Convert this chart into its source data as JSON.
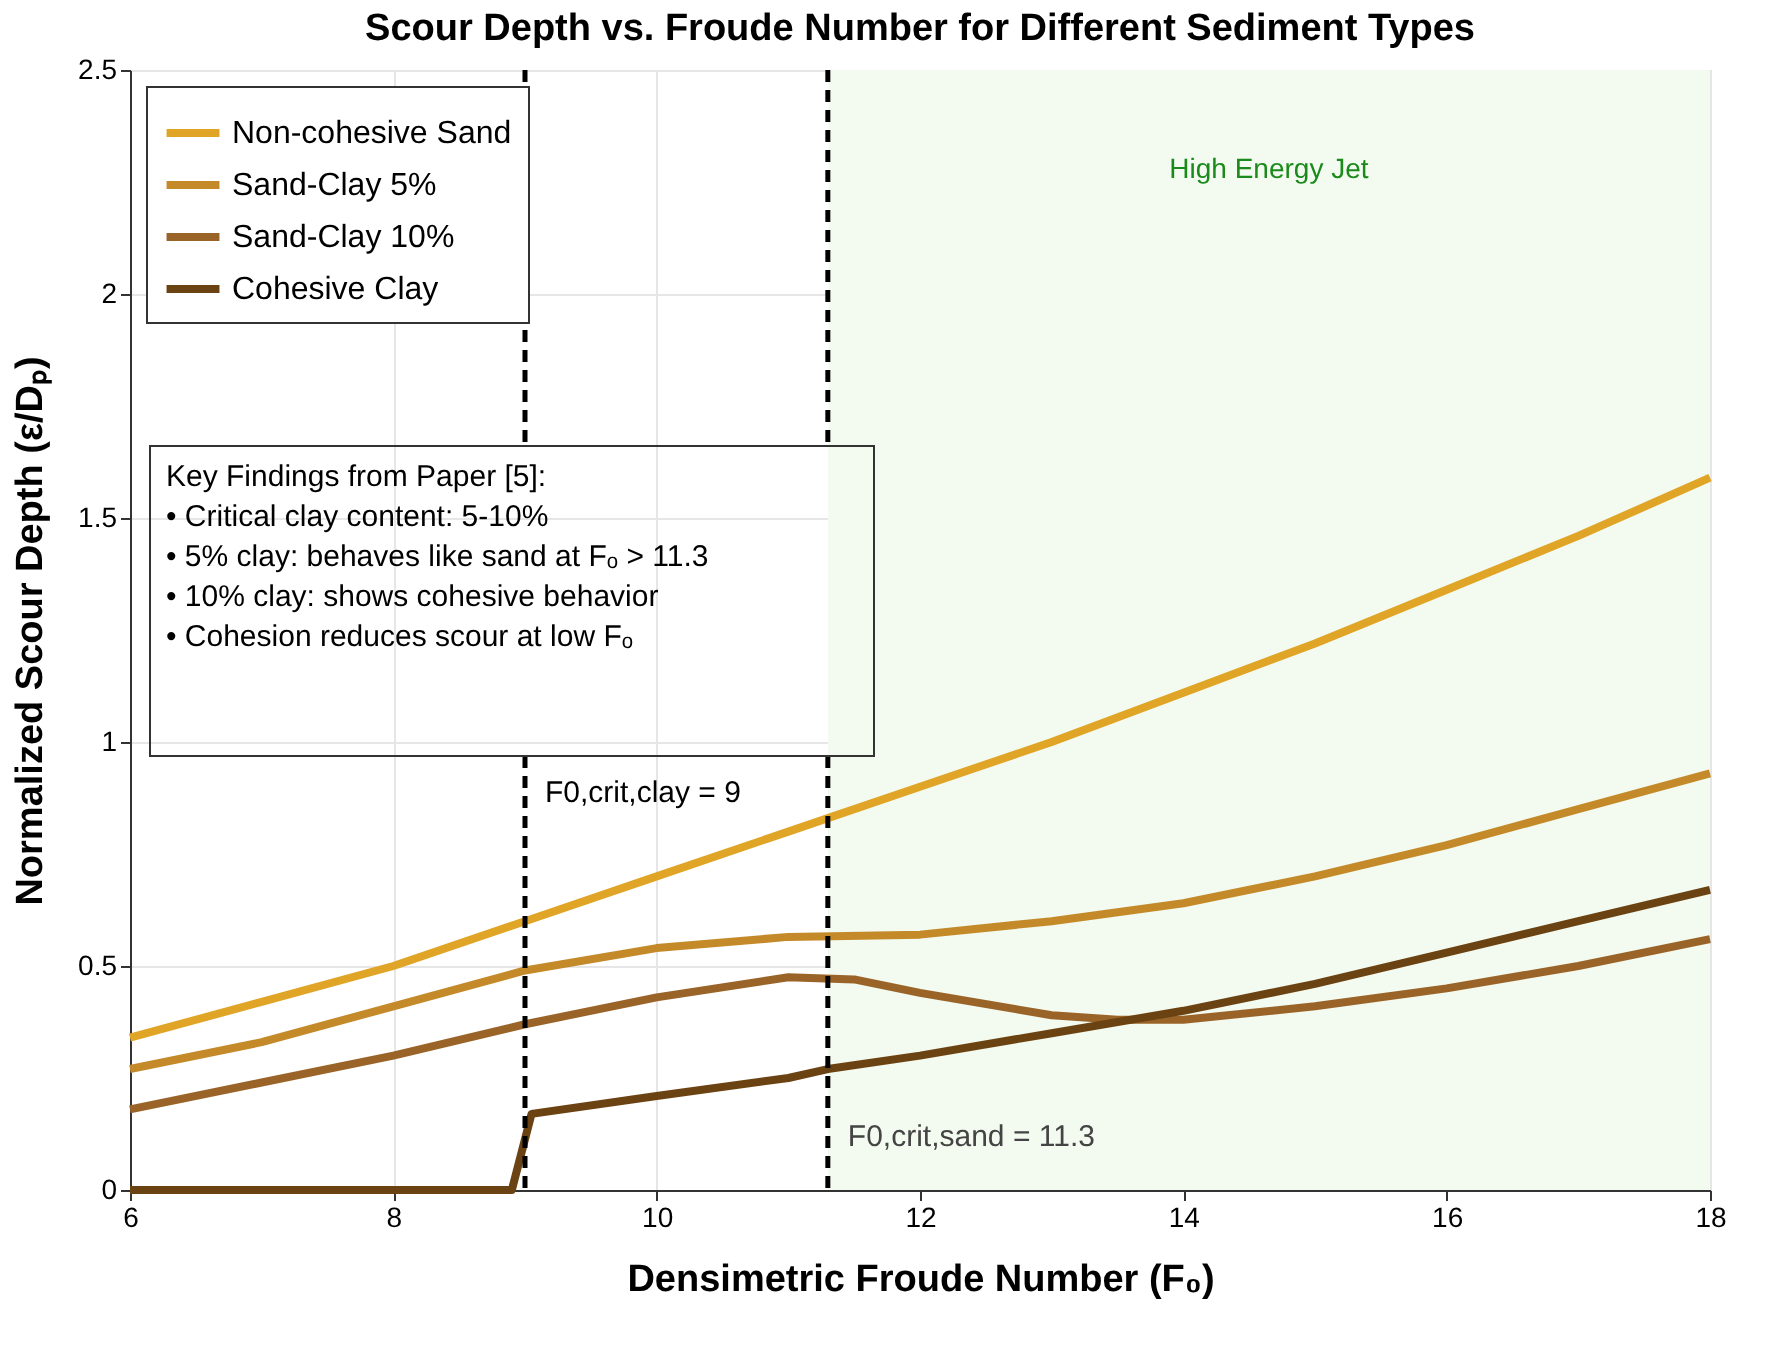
{
  "chart_data": {
    "type": "line",
    "title": "Scour Depth vs. Froude Number for Different Sediment Types",
    "xlabel": "Densimetric Froude Number (F₀)",
    "ylabel": "Normalized Scour Depth (ε/Dₚ)",
    "xlim": [
      6,
      18
    ],
    "xticks": [
      6,
      8,
      10,
      12,
      14,
      16,
      18
    ],
    "ylim": [
      0,
      2.5
    ],
    "yticks": [
      0,
      0.5,
      1,
      1.5,
      2,
      2.5
    ],
    "grid": true,
    "legend": "top left",
    "line_style": "solid",
    "marker": "none",
    "series": [
      {
        "name": "Non-cohesive Sand",
        "color": "#e0a526",
        "x": [
          6,
          7,
          8,
          9,
          10,
          11,
          11.3,
          12,
          13,
          14,
          15,
          16,
          17,
          18
        ],
        "values": [
          0.34,
          0.42,
          0.5,
          0.6,
          0.7,
          0.8,
          0.83,
          0.9,
          1.0,
          1.11,
          1.22,
          1.34,
          1.46,
          1.59
        ]
      },
      {
        "name": "Sand-Clay 5%",
        "color": "#c48a2a",
        "x": [
          6,
          7,
          8,
          9,
          10,
          11,
          12,
          13,
          14,
          15,
          16,
          17,
          18
        ],
        "values": [
          0.27,
          0.33,
          0.41,
          0.49,
          0.54,
          0.565,
          0.57,
          0.6,
          0.64,
          0.7,
          0.77,
          0.85,
          0.93
        ]
      },
      {
        "name": "Sand-Clay 10%",
        "color": "#9a6428",
        "x": [
          6,
          7,
          8,
          9,
          10,
          11,
          11.5,
          12,
          13,
          13.5,
          14,
          15,
          16,
          17,
          18
        ],
        "values": [
          0.18,
          0.24,
          0.3,
          0.37,
          0.43,
          0.475,
          0.47,
          0.44,
          0.39,
          0.38,
          0.38,
          0.41,
          0.45,
          0.5,
          0.56
        ]
      },
      {
        "name": "Cohesive Clay",
        "color": "#6b4212",
        "x": [
          6,
          7,
          8,
          8.9,
          9.05,
          10,
          11,
          11.3,
          12,
          13,
          14,
          15,
          16,
          17,
          18
        ],
        "values": [
          0,
          0,
          0,
          0,
          0.17,
          0.21,
          0.25,
          0.27,
          0.3,
          0.35,
          0.4,
          0.46,
          0.53,
          0.6,
          0.67
        ]
      }
    ],
    "ref_lines": [
      {
        "axis": "x",
        "value": 9,
        "label": "F0,crit,clay = 9",
        "color": "#000000",
        "line_style": "dashed"
      },
      {
        "axis": "x",
        "value": 11.3,
        "label": "F0,crit,sand = 11.3",
        "color": "#000000",
        "line_style": "dashed"
      }
    ],
    "bands": [
      {
        "axis": "x",
        "from": 11.3,
        "to": 18,
        "label": "High Energy Jet",
        "color": "#f3faef"
      }
    ],
    "annotations": [
      "Key Findings from Paper [5]:\n• Critical clay content: 5-10%\n• 5% clay: behaves like sand at Fₒ > 11.3\n• 10% clay: shows cohesive behavior\n• Cohesion reduces scour at low Fₒ"
    ]
  }
}
